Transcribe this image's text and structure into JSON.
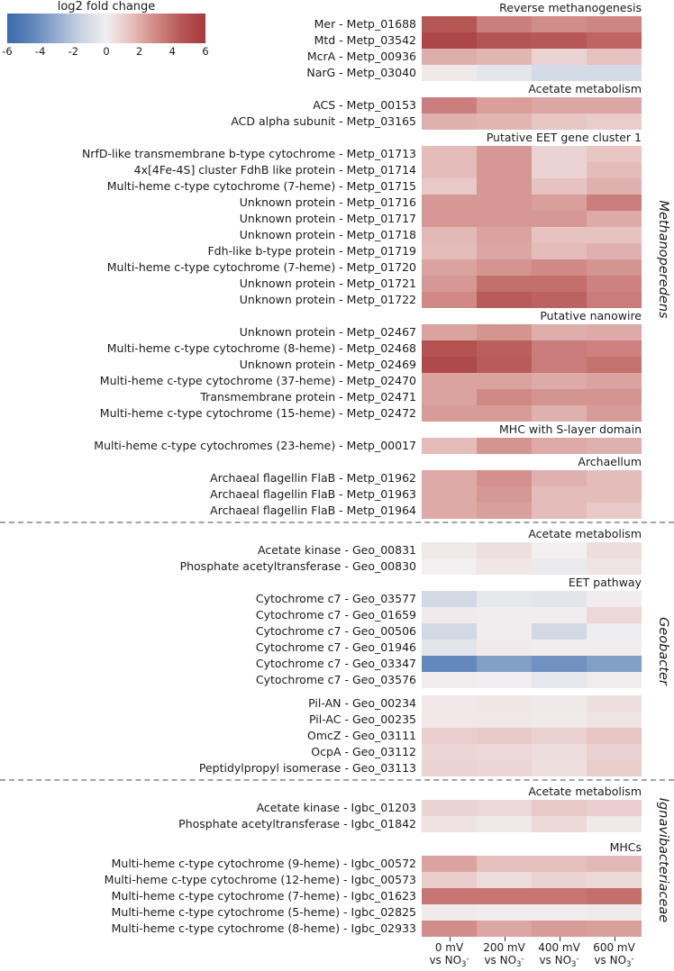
{
  "chart_data": {
    "type": "heatmap",
    "colorbar": {
      "title": "log2 fold change",
      "min": -6,
      "max": 6,
      "ticks": [
        -6,
        -4,
        -2,
        0,
        2,
        4,
        6
      ],
      "gradient_stops": [
        {
          "v": -6,
          "color": "#3b6aac"
        },
        {
          "v": -4.5,
          "color": "#5f85ba"
        },
        {
          "v": -3,
          "color": "#94accf"
        },
        {
          "v": -1.5,
          "color": "#cad3e2"
        },
        {
          "v": 0,
          "color": "#f1eff0"
        },
        {
          "v": 1.5,
          "color": "#e5c0bd"
        },
        {
          "v": 3,
          "color": "#d08985"
        },
        {
          "v": 4.5,
          "color": "#b75857"
        },
        {
          "v": 6,
          "color": "#a63a3e"
        }
      ]
    },
    "columns": [
      {
        "line1": "0 mV"
      },
      {
        "line1": "200 mV"
      },
      {
        "line1": "400 mV"
      },
      {
        "line1": "600 mV"
      }
    ],
    "column_suffix": {
      "text": "vs NO",
      "sub": "3",
      "sup": "-"
    },
    "groups": [
      {
        "name": "Methanoperedens",
        "sections": [
          {
            "header": "Reverse methanogenesis",
            "rows": [
              {
                "label": "Mer - Metp_01688",
                "values": [
                  4.6,
                  3.3,
                  2.9,
                  3.1
                ]
              },
              {
                "label": "Mtd - Metp_03542",
                "values": [
                  5.4,
                  4.7,
                  4.5,
                  4.1
                ]
              },
              {
                "label": "McrA - Metp_00936",
                "values": [
                  2.0,
                  1.8,
                  0.9,
                  1.4
                ]
              },
              {
                "label": "NarG - Metp_03040",
                "values": [
                  0.2,
                  -0.5,
                  -1.1,
                  -1.1
                ]
              }
            ]
          },
          {
            "header": "Acetate metabolism",
            "rows": [
              {
                "label": "ACS - Metp_00153",
                "values": [
                  3.3,
                  2.4,
                  2.2,
                  2.2
                ]
              },
              {
                "label": "ACD alpha subunit - Metp_03165",
                "values": [
                  1.9,
                  1.8,
                  1.3,
                  1.1
                ]
              }
            ]
          },
          {
            "header": "Putative EET gene cluster 1",
            "rows": [
              {
                "label": "NrfD-like transmembrane b-type cytochrome - Metp_01713",
                "values": [
                  1.6,
                  2.6,
                  0.9,
                  1.3
                ]
              },
              {
                "label": "4x[4Fe-4S] cluster FdhB like protein - Metp_01714",
                "values": [
                  1.6,
                  2.6,
                  0.9,
                  1.6
                ]
              },
              {
                "label": "Multi-heme c-type cytochrome (7-heme) - Metp_01715",
                "values": [
                  1.2,
                  2.6,
                  1.4,
                  1.9
                ]
              },
              {
                "label": "Unknown protein - Metp_01716",
                "values": [
                  2.6,
                  2.6,
                  2.4,
                  3.3
                ]
              },
              {
                "label": "Unknown protein - Metp_01717",
                "values": [
                  2.6,
                  2.6,
                  2.6,
                  2.1
                ]
              },
              {
                "label": "Unknown protein - Metp_01718",
                "values": [
                  1.7,
                  2.3,
                  1.4,
                  1.4
                ]
              },
              {
                "label": "Fdh-like b-type protein - Metp_01719",
                "values": [
                  1.6,
                  2.2,
                  1.6,
                  1.9
                ]
              },
              {
                "label": "Multi-heme c-type cytochrome (7-heme) - Metp_01720",
                "values": [
                  2.3,
                  2.7,
                  3.0,
                  2.7
                ]
              },
              {
                "label": "Unknown protein - Metp_01721",
                "values": [
                  2.6,
                  3.8,
                  3.8,
                  3.2
                ]
              },
              {
                "label": "Unknown protein - Metp_01722",
                "values": [
                  3.0,
                  4.4,
                  4.2,
                  3.4
                ]
              }
            ]
          },
          {
            "header": "Putative nanowire",
            "rows": [
              {
                "label": "Unknown protein - Metp_02467",
                "values": [
                  2.3,
                  2.7,
                  2.0,
                  2.1
                ]
              },
              {
                "label": "Multi-heme c-type cytochrome (8-heme) - Metp_02468",
                "values": [
                  4.8,
                  4.3,
                  3.4,
                  3.2
                ]
              },
              {
                "label": "Unknown protein - Metp_02469",
                "values": [
                  5.2,
                  4.4,
                  3.4,
                  3.7
                ]
              },
              {
                "label": "Multi-heme c-type cytochrome (37-heme) - Metp_02470",
                "values": [
                  2.3,
                  2.3,
                  2.1,
                  2.3
                ]
              },
              {
                "label": "Transmembrane protein - Metp_02471",
                "values": [
                  2.3,
                  3.0,
                  2.7,
                  2.7
                ]
              },
              {
                "label": "Multi-heme c-type cytochrome (15-heme) - Metp_02472",
                "values": [
                  2.5,
                  2.5,
                  1.9,
                  2.5
                ]
              }
            ]
          },
          {
            "header": "MHC with S-layer domain",
            "rows": [
              {
                "label": "Multi-heme c-type cytochromes (23-heme) - Metp_00017",
                "values": [
                  1.6,
                  2.7,
                  2.1,
                  1.9
                ]
              }
            ]
          },
          {
            "header": "Archaellum",
            "rows": [
              {
                "label": "Archaeal flagellin FlaB - Metp_01962",
                "values": [
                  2.1,
                  2.8,
                  1.9,
                  1.6
                ]
              },
              {
                "label": "Archaeal flagellin FlaB - Metp_01963",
                "values": [
                  2.1,
                  2.6,
                  1.6,
                  1.6
                ]
              },
              {
                "label": "Archaeal flagellin FlaB - Metp_01964",
                "values": [
                  2.1,
                  2.4,
                  1.6,
                  1.2
                ]
              }
            ]
          }
        ]
      },
      {
        "name": "Geobacter",
        "sections": [
          {
            "header": "Acetate metabolism",
            "rows": [
              {
                "label": "Acetate kinase - Geo_00831",
                "values": [
                  0.2,
                  0.5,
                  0.0,
                  0.55
                ]
              },
              {
                "label": "Phosphate acetyltransferase - Geo_00830",
                "values": [
                  0.0,
                  0.3,
                  -0.25,
                  0.35
                ]
              }
            ]
          },
          {
            "header": "EET pathway",
            "rows": [
              {
                "label": "Cytochrome c7 - Geo_03577",
                "values": [
                  -1.2,
                  -0.4,
                  -0.55,
                  0.05
                ]
              },
              {
                "label": "Cytochrome c7 - Geo_01659",
                "values": [
                  0.15,
                  0.05,
                  0.05,
                  0.75
                ]
              },
              {
                "label": "Cytochrome c7 - Geo_00506",
                "values": [
                  -1.2,
                  0.05,
                  -1.2,
                  -0.15
                ]
              },
              {
                "label": "Cytochrome c7 - Geo_01946",
                "values": [
                  -0.55,
                  0.15,
                  0.05,
                  0.05
                ]
              },
              {
                "label": "Cytochrome c7 - Geo_03347",
                "values": [
                  -4.4,
                  -3.5,
                  -4.0,
                  -3.5
                ]
              },
              {
                "label": "Cytochrome c7 - Geo_03576",
                "values": [
                  0.1,
                  -0.05,
                  -0.45,
                  0.1
                ]
              }
            ]
          },
          {
            "header": null,
            "gap_before": true,
            "rows": [
              {
                "label": "Pil-AN - Geo_00234",
                "values": [
                  0.25,
                  0.3,
                  0.2,
                  0.5
                ]
              },
              {
                "label": "Pil-AC - Geo_00235",
                "values": [
                  0.25,
                  0.25,
                  0.15,
                  0.35
                ]
              },
              {
                "label": "OmcZ - Geo_03111",
                "values": [
                  1.0,
                  1.15,
                  0.95,
                  1.3
                ]
              },
              {
                "label": "OcpA - Geo_03112",
                "values": [
                  0.8,
                  0.75,
                  0.55,
                  0.95
                ]
              },
              {
                "label": "Peptidylpropyl isomerase - Geo_03113",
                "values": [
                  0.9,
                  0.8,
                  0.5,
                  1.1
                ]
              }
            ]
          }
        ]
      },
      {
        "name": "Ignavibacteriaceae",
        "sections": [
          {
            "header": "Acetate metabolism",
            "rows": [
              {
                "label": "Acetate kinase - Igbc_01203",
                "values": [
                  0.9,
                  0.7,
                  1.2,
                  1.0
                ]
              },
              {
                "label": "Phosphate acetyltransferase - Igbc_01842",
                "values": [
                  0.4,
                  0.2,
                  0.7,
                  0.2
                ]
              }
            ]
          },
          {
            "header": "MHCs",
            "gap_before": true,
            "rows": [
              {
                "label": "Multi-heme c-type cytochrome (9-heme) - Igbc_00572",
                "values": [
                  2.3,
                  1.5,
                  1.5,
                  1.7
                ]
              },
              {
                "label": "Multi-heme c-type cytochrome (12-heme) - Igbc_00573",
                "values": [
                  1.1,
                  0.6,
                  0.85,
                  0.7
                ]
              },
              {
                "label": "Multi-heme c-type cytochrome (7-heme) - Igbc_01623",
                "values": [
                  3.6,
                  3.6,
                  3.6,
                  3.8
                ]
              },
              {
                "label": "Multi-heme c-type cytochrome (5-heme) - Igbc_02825",
                "values": [
                  0.15,
                  0.1,
                  0.1,
                  0.15
                ]
              },
              {
                "label": "Multi-heme c-type cytochrome (8-heme) - Igbc_02933",
                "values": [
                  2.9,
                  2.2,
                  2.5,
                  2.4
                ]
              }
            ]
          }
        ]
      }
    ]
  }
}
